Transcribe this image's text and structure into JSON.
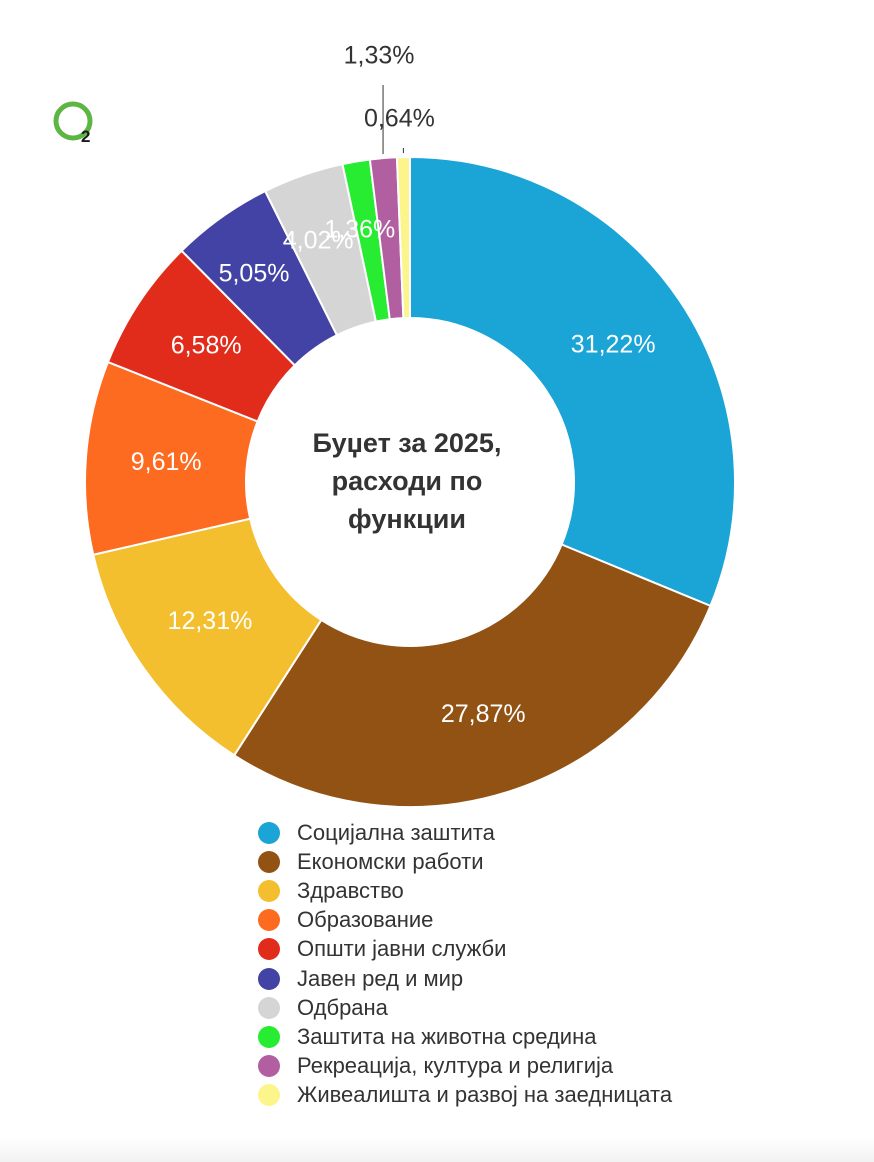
{
  "colors": {
    "label_dark": "#333333",
    "label_light": "#ffffff",
    "leader_line": "#333333"
  },
  "logo": {
    "icon": "o2-logo-icon",
    "ring_color": "#5db543",
    "subscript": "2"
  },
  "chart_data": {
    "type": "pie",
    "variant": "donut",
    "title": "Буџет за 2025, расходи по функции",
    "title_lines": [
      "Буџет за 2025,",
      "расходи по",
      "функции"
    ],
    "legend_position": "bottom",
    "unit": "%",
    "slices": [
      {
        "label": "Социјална заштита",
        "value": 31.22,
        "display": "31,22%",
        "color": "#1ba4d6"
      },
      {
        "label": "Економски работи",
        "value": 27.87,
        "display": "27,87%",
        "color": "#925214"
      },
      {
        "label": "Здравство",
        "value": 12.31,
        "display": "12,31%",
        "color": "#f4bf2e"
      },
      {
        "label": "Образование",
        "value": 9.61,
        "display": "9,61%",
        "color": "#fd6b21"
      },
      {
        "label": "Општи јавни служби",
        "value": 6.58,
        "display": "6,58%",
        "color": "#e12c1b"
      },
      {
        "label": "Јавен ред и мир",
        "value": 5.05,
        "display": "5,05%",
        "color": "#4343a6"
      },
      {
        "label": "Одбрана",
        "value": 4.02,
        "display": "4,02%",
        "color": "#d5d5d5"
      },
      {
        "label": "Заштита на животна средина",
        "value": 1.36,
        "display": "1,36%",
        "color": "#27ec31"
      },
      {
        "label": "Рекреација, култура и религија",
        "value": 1.33,
        "display": "1,33%",
        "color": "#b15fa1"
      },
      {
        "label": "Живеалишта и развој на заедницата",
        "value": 0.64,
        "display": "0,64%",
        "color": "#fbf58b"
      }
    ]
  }
}
